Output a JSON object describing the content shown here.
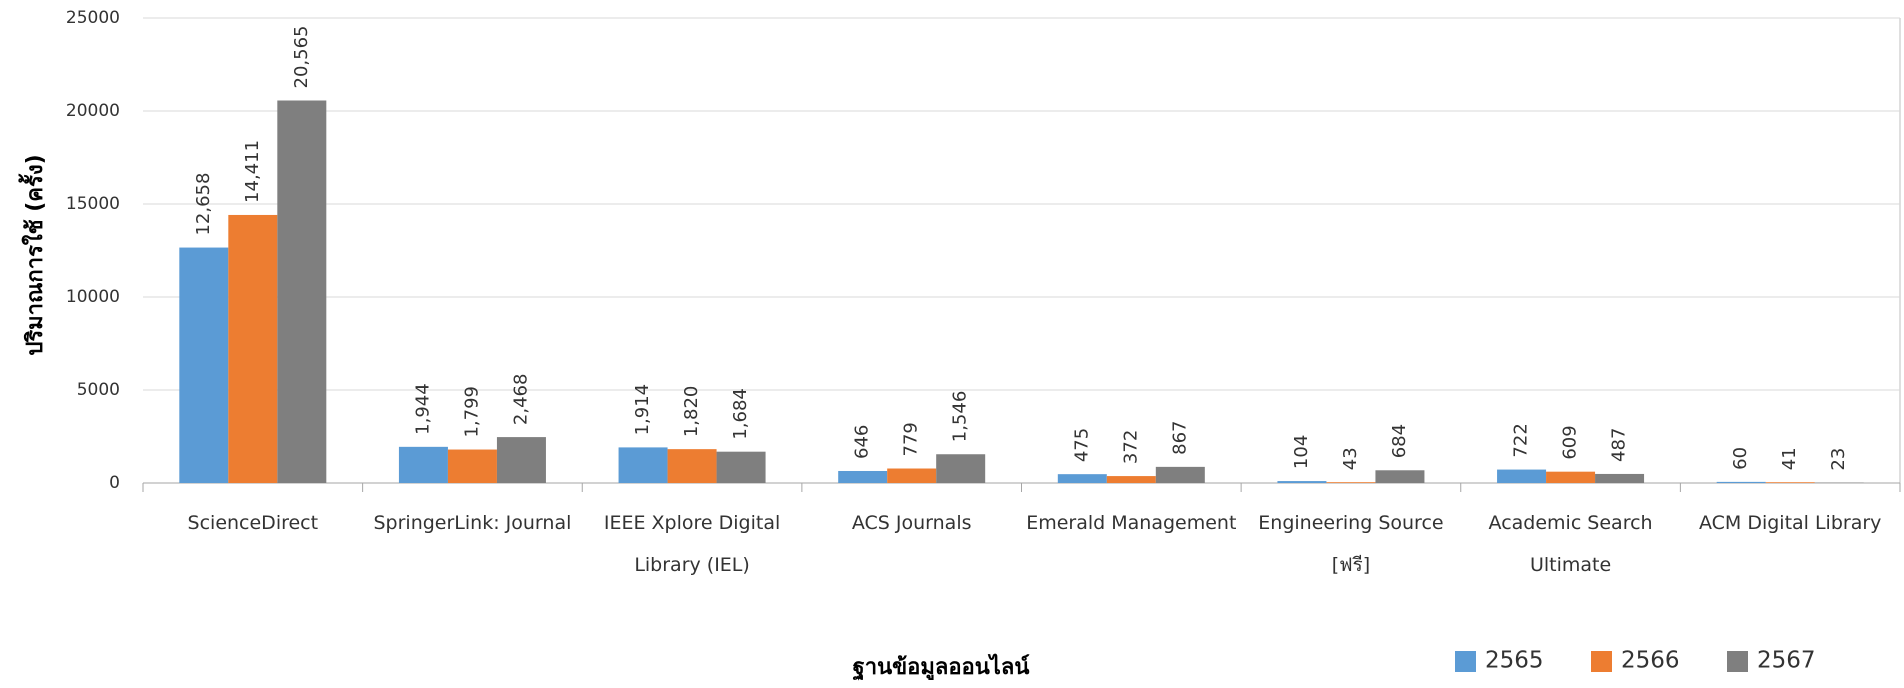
{
  "chart_data": {
    "type": "bar",
    "x_label": "ฐานข้อมูลออนไลน์",
    "y_label": "ปริมาณการใช้ (ครั้ง)",
    "categories": [
      "ScienceDirect",
      "SpringerLink: Journal",
      "IEEE Xplore Digital Library (IEL)",
      "ACS Journals",
      "Emerald Management",
      "Engineering Source [ฟรี]",
      "Academic Search Ultimate",
      "ACM Digital Library"
    ],
    "series": [
      {
        "name": "2565",
        "color": "#5b9bd5",
        "values": [
          12658,
          1944,
          1914,
          646,
          475,
          104,
          722,
          60
        ],
        "value_labels": [
          "12,658",
          "1,944",
          "1,914",
          "646",
          "475",
          "104",
          "722",
          "60"
        ]
      },
      {
        "name": "2566",
        "color": "#ed7d31",
        "values": [
          14411,
          1799,
          1820,
          779,
          372,
          43,
          609,
          41
        ],
        "value_labels": [
          "14,411",
          "1,799",
          "1,820",
          "779",
          "372",
          "43",
          "609",
          "41"
        ]
      },
      {
        "name": "2567",
        "color": "#7f7f7f",
        "values": [
          20565,
          2468,
          1684,
          1546,
          867,
          684,
          487,
          23
        ],
        "value_labels": [
          "20,565",
          "2,468",
          "1,684",
          "1,546",
          "867",
          "684",
          "487",
          "23"
        ]
      }
    ],
    "ylim": [
      0,
      25000
    ],
    "yticks": [
      0,
      5000,
      10000,
      15000,
      20000,
      25000
    ],
    "grid": true,
    "legend": "bottom-right"
  }
}
